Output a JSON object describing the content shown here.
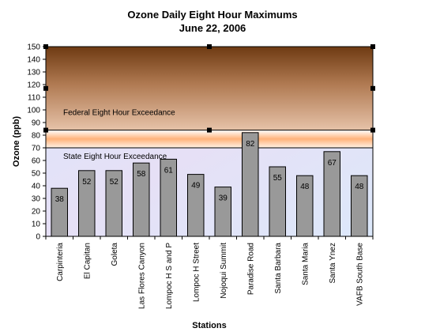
{
  "chart_data": {
    "type": "bar",
    "title": "Ozone Daily Eight Hour Maximums",
    "subtitle": "June 22, 2006",
    "xlabel": "Stations",
    "ylabel": "Ozone (ppb)",
    "ylim": [
      0,
      150
    ],
    "yticks": [
      0,
      10,
      20,
      30,
      40,
      50,
      60,
      70,
      80,
      90,
      100,
      110,
      120,
      130,
      140,
      150
    ],
    "categories": [
      "Carpinteria",
      "El Capitan",
      "Goleta",
      "Las Flores Canyon",
      "Lompoc H S and P",
      "Lompoc H Street",
      "Nojoqui Summit",
      "Paradise Road",
      "Santa Barbara",
      "Santa Maria",
      "Santa Ynez",
      "VAFB South Base"
    ],
    "values": [
      38,
      52,
      52,
      58,
      61,
      49,
      39,
      82,
      55,
      48,
      67,
      48
    ],
    "bar_color": "#999999",
    "bands": [
      {
        "label": "Federal Eight Hour Exceedance",
        "from": 84,
        "to": 150
      },
      {
        "label": "State Eight Hour Exceedance",
        "from": 70,
        "to": 84
      }
    ]
  }
}
